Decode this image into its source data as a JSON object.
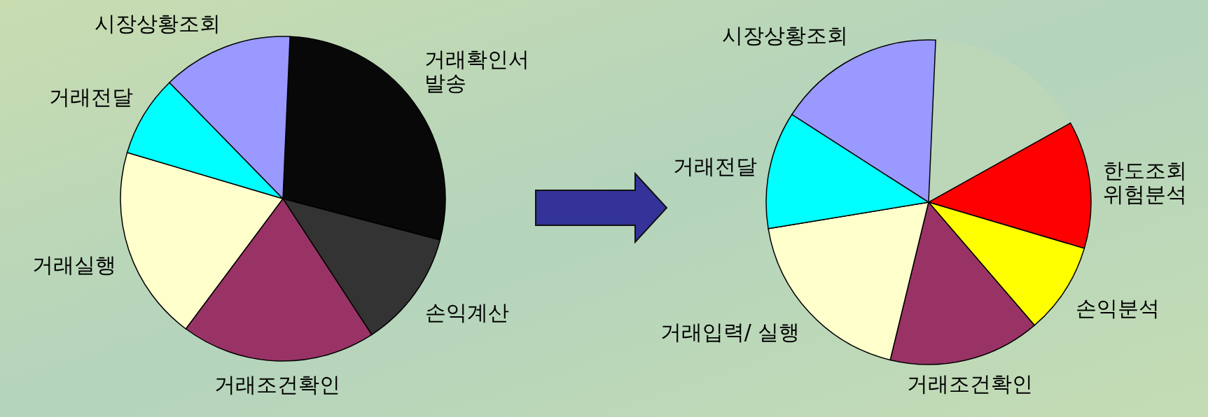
{
  "chart_data": [
    {
      "type": "pie",
      "categories": [
        "거래확인서\n발송",
        "손익계산",
        "거래조건확인",
        "거래실행",
        "거래전달",
        "시장상황조회"
      ],
      "values": [
        28.4,
        11.7,
        19.4,
        19.4,
        8.1,
        13.0
      ],
      "colors": [
        "#080808",
        "#333333",
        "#993366",
        "#ffffcc",
        "#00ffff",
        "#9999ff"
      ]
    },
    {
      "type": "pie",
      "categories": [
        null,
        "한도조회\n위험분석",
        "손익분석",
        "거래조건확인",
        "거래입력/ 실행",
        "거래전달",
        "시장상황조회"
      ],
      "values": [
        16.2,
        12.7,
        9.1,
        15.1,
        18.6,
        11.7,
        16.6
      ],
      "colors": [
        "#bcd6b8",
        "#ff0000",
        "#ffff00",
        "#993366",
        "#ffffcc",
        "#00ffff",
        "#9999ff"
      ]
    }
  ]
}
